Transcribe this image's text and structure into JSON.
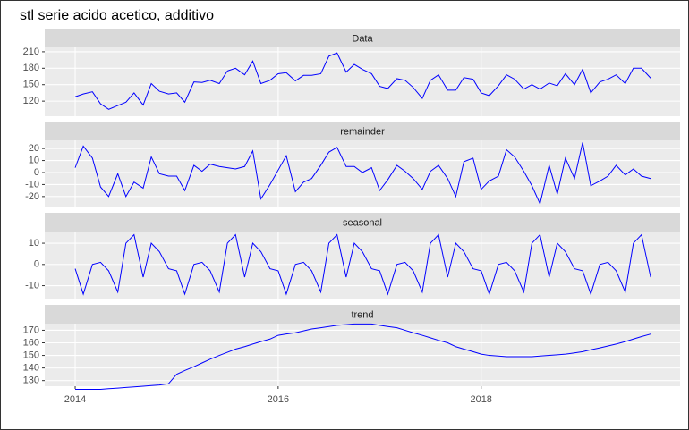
{
  "chart_data": {
    "type": "line",
    "title": "stl serie acido acetico, additivo",
    "color": "#0000ff",
    "grid": true,
    "xlim": [
      2013.7,
      2019.96
    ],
    "xticks": [
      2014,
      2016,
      2018
    ],
    "x": [
      2014.0,
      2014.08,
      2014.17,
      2014.25,
      2014.33,
      2014.42,
      2014.5,
      2014.58,
      2014.67,
      2014.75,
      2014.83,
      2014.92,
      2015.0,
      2015.08,
      2015.17,
      2015.25,
      2015.33,
      2015.42,
      2015.5,
      2015.58,
      2015.67,
      2015.75,
      2015.83,
      2015.92,
      2016.0,
      2016.08,
      2016.17,
      2016.25,
      2016.33,
      2016.42,
      2016.5,
      2016.58,
      2016.67,
      2016.75,
      2016.83,
      2016.92,
      2017.0,
      2017.08,
      2017.17,
      2017.25,
      2017.33,
      2017.42,
      2017.5,
      2017.58,
      2017.67,
      2017.75,
      2017.83,
      2017.92,
      2018.0,
      2018.08,
      2018.17,
      2018.25,
      2018.33,
      2018.42,
      2018.5,
      2018.58,
      2018.67,
      2018.75,
      2018.83,
      2018.92,
      2019.0,
      2019.08,
      2019.17,
      2019.25,
      2019.33,
      2019.42,
      2019.5,
      2019.58,
      2019.67
    ],
    "panels": [
      {
        "title": "Data",
        "ylim": [
          92.5,
          218
        ],
        "yticks": [
          120,
          150,
          180,
          210
        ],
        "values": [
          128,
          133,
          137,
          115,
          105,
          112,
          118,
          135,
          113,
          152,
          138,
          133,
          135,
          118,
          155,
          154,
          158,
          152,
          175,
          180,
          168,
          193,
          152,
          158,
          170,
          172,
          157,
          167,
          167,
          170,
          202,
          208,
          173,
          187,
          178,
          170,
          147,
          143,
          161,
          158,
          145,
          125,
          158,
          168,
          140,
          140,
          163,
          160,
          135,
          130,
          148,
          168,
          160,
          142,
          150,
          142,
          153,
          148,
          170,
          150,
          178,
          135,
          155,
          160,
          168,
          152,
          180,
          180,
          162
        ]
      },
      {
        "title": "remainder",
        "ylim": [
          -28.3,
          26.8
        ],
        "yticks": [
          -20,
          -10,
          0,
          10,
          20
        ],
        "values": [
          4,
          22,
          12,
          -12,
          -20,
          -1,
          -20,
          -8,
          -13,
          13,
          -1,
          -3,
          -3,
          -15,
          6,
          1,
          7,
          5,
          4,
          3,
          5,
          18,
          -22,
          -10,
          2,
          14,
          -16,
          -8,
          -5,
          6,
          17,
          21,
          5,
          5,
          0,
          4,
          -15,
          -6,
          6,
          1,
          -5,
          -14,
          1,
          6,
          -5,
          -20,
          9,
          12,
          -14,
          -7,
          -3,
          19,
          13,
          1,
          -11,
          -26,
          6,
          -18,
          12,
          -5,
          25,
          -11,
          -7,
          -3,
          6,
          -2,
          3,
          -3,
          -5
        ]
      },
      {
        "title": "seasonal",
        "ylim": [
          -16.5,
          15.5
        ],
        "yticks": [
          -10,
          0,
          10
        ],
        "values": [
          -2,
          -14,
          0,
          1,
          -3,
          -13,
          10,
          14,
          -6,
          10,
          6,
          -2,
          -3,
          -14,
          0,
          1,
          -3,
          -13,
          10,
          14,
          -6,
          10,
          6,
          -2,
          -3,
          -14,
          0,
          1,
          -3,
          -13,
          10,
          14,
          -6,
          10,
          6,
          -2,
          -3,
          -14,
          0,
          1,
          -3,
          -13,
          10,
          14,
          -6,
          10,
          6,
          -2,
          -3,
          -14,
          0,
          1,
          -3,
          -13,
          10,
          14,
          -6,
          10,
          6,
          -2,
          -3,
          -14,
          0,
          1,
          -3,
          -13,
          10,
          14,
          -6
        ]
      },
      {
        "title": "trend",
        "ylim": [
          125.5,
          175.3
        ],
        "yticks": [
          130,
          140,
          150,
          160,
          170
        ],
        "values": [
          123,
          123,
          123,
          123,
          123.5,
          124,
          124.5,
          125,
          125.5,
          126,
          126.5,
          127.5,
          135,
          138,
          141,
          144,
          147,
          150,
          152.5,
          155,
          157,
          159,
          161,
          163,
          166,
          167,
          168,
          169.5,
          171,
          172,
          173,
          174,
          174.5,
          175,
          175,
          175,
          174,
          173,
          172,
          170,
          168,
          166,
          164,
          162,
          160,
          157,
          155,
          153,
          151,
          150,
          149.5,
          149,
          149,
          149,
          149,
          149.5,
          150,
          150.5,
          151,
          152,
          153,
          154.5,
          156,
          157.5,
          159,
          161,
          163,
          165,
          167
        ]
      }
    ]
  }
}
